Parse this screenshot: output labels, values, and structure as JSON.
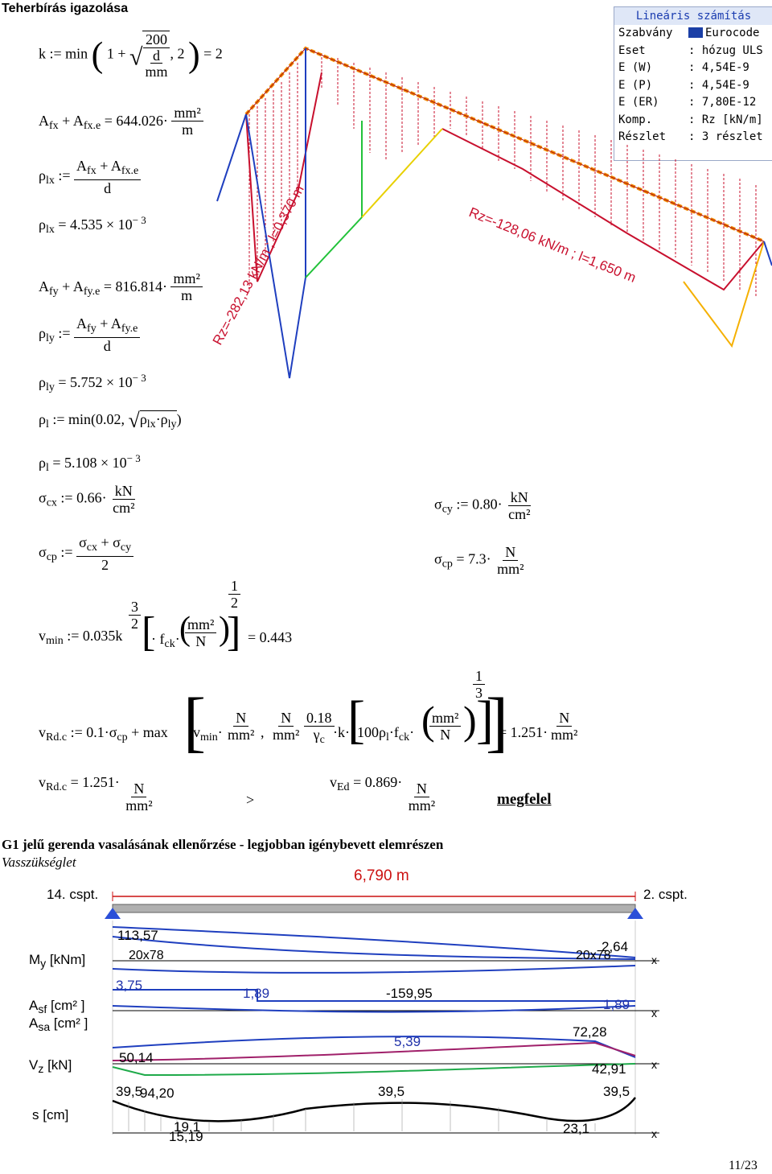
{
  "page": {
    "heading1": "Teherbírás igazolása",
    "heading2": "G1 jelű gerenda vasalásának ellenőrzése - legjobban igénybevett elemrészen",
    "subheading2": "Vasszükséglet",
    "page_number": "11/23"
  },
  "calc": {
    "k_def": "k := min",
    "k_one_plus": "1 +",
    "k_200": "200",
    "k_d": "d",
    "k_mm": "mm",
    "k_tail": ", 2",
    "k_result": "= 2",
    "afx_lhs": "A",
    "afx_val": "= 644.026·",
    "afx_unit_num": "mm²",
    "afx_unit_den": "m",
    "rholx_def_num": "A",
    "rholx_def_den": "d",
    "rholx_val": "ρ",
    "rholx_result": "= 4.535 × 10",
    "rholx_exp": "− 3",
    "afy_val": "= 816.814·",
    "rholy_result": "= 5.752 × 10",
    "rholy_exp": "− 3",
    "rhol_def": ":= min(0.02,",
    "rhol_result": "= 5.108 × 10",
    "rhol_exp": "− 3",
    "sigcx_def": ":= 0.66·",
    "kN": "kN",
    "cm2": "cm²",
    "sigcy_def": ":= 0.80·",
    "sigcp_def_num": "σcx + σcy",
    "sigcp_def_den": "2",
    "sigcp_result": "= 7.3·",
    "N": "N",
    "mm2": "mm²",
    "vmin_def": ":= 0.035k",
    "vmin_exp_num": "3",
    "vmin_exp_den": "2",
    "vmin_fck": "· f",
    "vmin_half_num": "1",
    "vmin_half_den": "2",
    "vmin_result": "= 0.443",
    "vrdc_def": ":= 0.1·σ",
    "vrdc_max": "+ max",
    "vrdc_018": "0.18",
    "vrdc_gamma": "γ",
    "vrdc_k": "·k·",
    "vrdc_100": "100ρ",
    "vrdc_third_num": "1",
    "vrdc_third_den": "3",
    "vrdc_result": "= 1.251·",
    "vrdc_check": "= 1.251·",
    "gt": ">",
    "ved_val": "= 0.869·",
    "verdict": "megfelel"
  },
  "panel": {
    "title": "Lineáris számítás",
    "rows": [
      {
        "key": "Szabvány",
        "value": "Eurocode",
        "flag": true
      },
      {
        "key": "Eset",
        "value": ": hózug ULS"
      },
      {
        "key": "E (W)",
        "value": ": 4,54E-9"
      },
      {
        "key": "E (P)",
        "value": ": 4,54E-9"
      },
      {
        "key": "E (ER)",
        "value": ": 7,80E-12"
      },
      {
        "key": "Komp.",
        "value": ": Rz [kN/m]"
      },
      {
        "key": "Részlet",
        "value": ": 3 részlet"
      }
    ]
  },
  "frame_diagram": {
    "label_left": "Rz=-282,13 kN/m ; l=0,370 m",
    "label_right": "Rz=-128,06 kN/m ; l=1,650 m",
    "colors": {
      "red": "#c8102e",
      "orange": "#f08a00",
      "blue": "#1f3fbf"
    }
  },
  "beam": {
    "span_label": "6,790 m",
    "node_left": "14. cspt.",
    "node_right": "2. cspt.",
    "rows": [
      {
        "label": "My [kNm]",
        "values": [
          "113,57",
          "20x78",
          "2,64",
          "20x78"
        ]
      },
      {
        "label": "Asf [cm²] / Asa [cm²]",
        "values": [
          "3,75",
          "1,89",
          "-159,95",
          "1,89"
        ]
      },
      {
        "label": "Vz [kN]",
        "values": [
          "5,39",
          "72,28",
          "50,14",
          "42,91"
        ]
      },
      {
        "label": "s [cm]",
        "values": [
          "39,5",
          "94,20",
          "39,5",
          "39,5",
          "19,1",
          "15,19",
          "23,1"
        ]
      }
    ],
    "axis_x": "x"
  }
}
